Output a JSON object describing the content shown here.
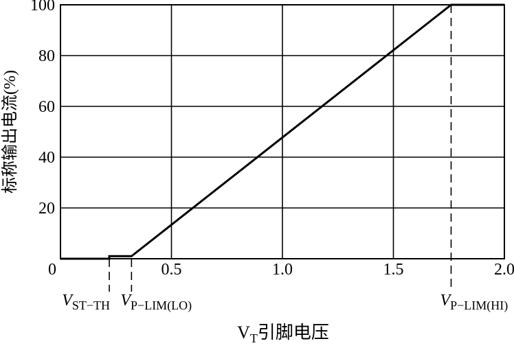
{
  "chart_data": {
    "type": "line",
    "xlabel": {
      "main": "V",
      "sub": "T",
      "rest": "引脚电压"
    },
    "ylabel": "标称输出电流(%)",
    "xlim": [
      0,
      2.0
    ],
    "ylim": [
      0,
      100
    ],
    "x_ticks": [
      "0.5",
      "1.0",
      "1.5",
      "2.0"
    ],
    "x_tick_values": [
      0.5,
      1.0,
      1.5,
      2.0
    ],
    "y_ticks": [
      "20",
      "40",
      "60",
      "80",
      "100"
    ],
    "y_tick_values": [
      20,
      40,
      60,
      80,
      100
    ],
    "origin_label": "0",
    "grid": true,
    "series": [
      {
        "x": [
          0,
          0.22,
          0.22,
          0.32,
          1.76,
          2.0
        ],
        "y": [
          0,
          0,
          1,
          1,
          100,
          100
        ]
      }
    ],
    "annotations": [
      {
        "main": "V",
        "sub": "ST−TH",
        "x": 0.22
      },
      {
        "main": "V",
        "sub": "P−LIM(LO)",
        "x": 0.32
      },
      {
        "main": "V",
        "sub": "P−LIM(HI)",
        "x": 1.76
      }
    ],
    "line_color": "#000000"
  }
}
